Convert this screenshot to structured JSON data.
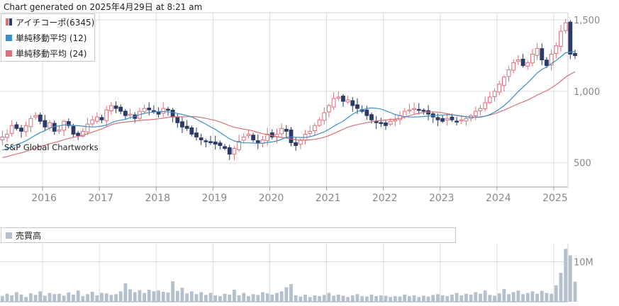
{
  "header": "Chart generated on 2025年4月29日 at 8:21 am",
  "credit": "S&P Global Chartworks",
  "colors": {
    "up": "#d9707a",
    "down": "#2b3a67",
    "sma12": "#3d8fc6",
    "sma24": "#d9707a",
    "volume": "#b4c0cc",
    "grid": "#dcdcdc",
    "axis_text": "#888888"
  },
  "chart_data": [
    {
      "type": "candlestick",
      "title": "",
      "legend_position": "top-left",
      "legend": [
        {
          "label": "アイチコーポ(6345)",
          "kind": "candle"
        },
        {
          "label": "単純移動平均 (12)",
          "kind": "sma12"
        },
        {
          "label": "単純移動平均 (24)",
          "kind": "sma24"
        }
      ],
      "x_ticks": [
        "2016",
        "2017",
        "2018",
        "2019",
        "2020",
        "2021",
        "2022",
        "2023",
        "2024",
        "2025"
      ],
      "y_ticks": [
        500,
        1000,
        1500
      ],
      "y_tick_labels": [
        "500",
        "1,000",
        "1,500"
      ],
      "ylim": [
        330,
        1550
      ],
      "x_range": [
        "2015-04",
        "2025-04"
      ],
      "grid": true,
      "monthly_close": [
        680,
        700,
        760,
        740,
        720,
        760,
        810,
        830,
        790,
        750,
        780,
        720,
        730,
        790,
        760,
        700,
        690,
        720,
        770,
        800,
        820,
        800,
        870,
        900,
        880,
        860,
        830,
        840,
        810,
        860,
        880,
        870,
        860,
        840,
        880,
        870,
        820,
        780,
        750,
        740,
        700,
        680,
        660,
        650,
        640,
        630,
        620,
        600,
        560,
        600,
        650,
        680,
        700,
        660,
        640,
        660,
        700,
        680,
        700,
        740,
        720,
        640,
        620,
        660,
        700,
        720,
        760,
        800,
        850,
        900,
        950,
        960,
        930,
        940,
        900,
        880,
        860,
        830,
        800,
        780,
        780,
        760,
        790,
        800,
        830,
        860,
        870,
        880,
        870,
        860,
        840,
        820,
        800,
        790,
        810,
        800,
        790,
        800,
        810,
        830,
        860,
        880,
        920,
        960,
        1000,
        1050,
        1100,
        1150,
        1200,
        1220,
        1180,
        1200,
        1260,
        1300,
        1220,
        1180,
        1260,
        1320,
        1420,
        1480,
        1260,
        1250
      ],
      "sma12_start": 580,
      "sma24_start": 530
    },
    {
      "type": "bar",
      "title": "",
      "legend": [
        {
          "label": "売買高",
          "kind": "volume"
        }
      ],
      "y_ticks": [
        10000000
      ],
      "y_tick_labels": [
        "10M"
      ],
      "ylim": [
        0,
        14500000
      ],
      "x_range": [
        "2015-04",
        "2025-04"
      ],
      "monthly_volume_m": [
        1.4,
        2.0,
        1.6,
        2.4,
        1.8,
        1.2,
        2.1,
        1.7,
        2.6,
        1.5,
        2.2,
        1.9,
        2.0,
        1.5,
        2.3,
        1.8,
        2.8,
        1.4,
        1.9,
        2.5,
        1.6,
        2.2,
        2.1,
        1.7,
        1.9,
        2.6,
        4.6,
        3.1,
        2.4,
        2.9,
        2.2,
        3.0,
        2.6,
        2.8,
        2.5,
        2.3,
        5.1,
        2.7,
        3.5,
        2.1,
        2.6,
        1.9,
        2.4,
        1.7,
        2.2,
        1.6,
        1.4,
        2.0,
        1.8,
        3.0,
        1.6,
        2.2,
        1.4,
        1.9,
        1.7,
        2.4,
        2.1,
        1.8,
        2.2,
        2.6,
        3.6,
        4.4,
        1.6,
        1.3,
        1.8,
        1.2,
        1.6,
        1.4,
        1.7,
        2.2,
        1.5,
        1.8,
        1.5,
        1.2,
        1.6,
        1.9,
        1.4,
        1.3,
        1.8,
        1.4,
        1.6,
        1.5,
        1.2,
        1.4,
        1.3,
        1.8,
        1.4,
        1.6,
        1.2,
        1.5,
        1.3,
        1.7,
        1.9,
        1.6,
        1.4,
        1.8,
        2.2,
        1.6,
        2.0,
        1.8,
        2.4,
        2.0,
        2.8,
        1.7,
        1.5,
        2.1,
        3.2,
        1.9,
        2.4,
        2.8,
        1.9,
        2.2,
        2.6,
        2.0,
        2.7,
        2.2,
        2.0,
        4.1,
        7.2,
        13.2,
        11.6,
        5.0
      ]
    }
  ]
}
